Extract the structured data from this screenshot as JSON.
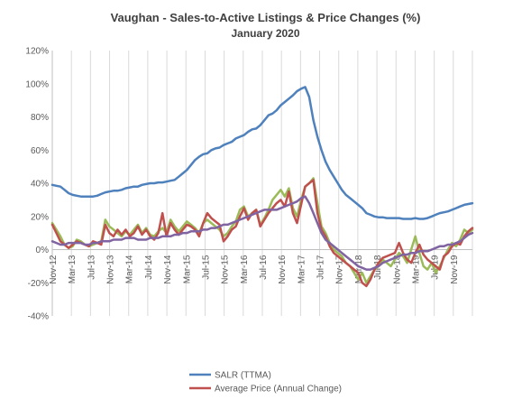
{
  "chart_data": {
    "type": "line",
    "title": "Vaughan - Sales-to-Active Listings & Price Changes (%)",
    "subtitle": "January 2020",
    "xlabel": "",
    "ylabel": "",
    "ylim": [
      -40,
      120
    ],
    "yticks": [
      "120%",
      "100%",
      "80%",
      "60%",
      "40%",
      "20%",
      "0%",
      "-20%",
      "-40%"
    ],
    "ytick_values": [
      120,
      100,
      80,
      60,
      40,
      20,
      0,
      -20,
      -40
    ],
    "x_tick_labels": [
      "Nov-12",
      "Mar-13",
      "Jul-13",
      "Nov-13",
      "Mar-14",
      "Jul-14",
      "Nov-14",
      "Mar-15",
      "Jul-15",
      "Nov-15",
      "Mar-16",
      "Jul-16",
      "Nov-16",
      "Mar-17",
      "Jul-17",
      "Nov-17",
      "Mar-18",
      "Jul-18",
      "Nov-18",
      "Mar-19",
      "Jul-19",
      "Nov-19"
    ],
    "grid": "vertical",
    "legend_position": "bottom",
    "series": [
      {
        "name": "SALR (TTMA)",
        "color": "#4f81bd",
        "values": [
          39,
          38.5,
          38,
          36,
          34,
          33,
          32.5,
          32,
          32,
          32,
          32,
          32.5,
          33.5,
          34.5,
          35,
          35.5,
          35.5,
          36,
          37,
          37.5,
          38,
          38,
          39,
          39.5,
          40,
          40,
          40.5,
          40.5,
          41,
          41.5,
          42,
          44,
          46,
          48,
          51,
          54,
          56,
          57.5,
          58,
          60,
          61,
          61.5,
          63,
          64,
          65,
          67,
          68,
          69,
          71,
          72.5,
          73,
          75,
          78,
          81,
          82,
          84,
          87,
          89,
          91,
          93,
          95.5,
          97,
          98,
          92,
          78,
          68,
          60,
          53,
          48,
          44,
          40,
          36,
          33,
          31,
          29,
          27,
          25,
          22,
          21,
          20,
          19.5,
          19.5,
          19,
          19,
          19,
          19,
          18.5,
          18.5,
          18.5,
          19,
          18.5,
          18.5,
          19,
          20,
          21,
          22,
          22.5,
          23,
          24,
          25,
          26,
          27,
          27.5,
          28
        ]
      },
      {
        "name": "Average Price (Annual Change)",
        "color": "#c0504d",
        "values": [
          15,
          10,
          5,
          3,
          1,
          3,
          5,
          4,
          3,
          2,
          5,
          4,
          3,
          15,
          10,
          8,
          12,
          9,
          12,
          8,
          10,
          14,
          9,
          12,
          8,
          6,
          10,
          22,
          8,
          16,
          12,
          9,
          12,
          15,
          14,
          12,
          8,
          16,
          22,
          19,
          17,
          15,
          5,
          8,
          12,
          14,
          20,
          25,
          18,
          22,
          24,
          14,
          18,
          22,
          25,
          28,
          30,
          26,
          35,
          22,
          16,
          27,
          38,
          40,
          42,
          22,
          12,
          8,
          2,
          -2,
          -4,
          -6,
          -8,
          -10,
          -12,
          -14,
          -20,
          -22,
          -18,
          -12,
          -8,
          -5,
          -4,
          -3,
          -2,
          4,
          -2,
          -6,
          -8,
          -2,
          3,
          -3,
          -6,
          -8,
          -10,
          -12,
          -4,
          -2,
          2,
          4,
          3,
          8,
          11,
          13
        ]
      },
      {
        "name": "Average Price (Annual Change)",
        "color": "#9bbb59",
        "values": [
          16,
          12,
          8,
          3,
          1,
          2,
          6,
          5,
          3,
          2,
          3,
          4,
          5,
          18,
          14,
          12,
          10,
          8,
          11,
          9,
          12,
          15,
          10,
          13,
          9,
          8,
          11,
          13,
          10,
          18,
          14,
          11,
          14,
          17,
          15,
          13,
          10,
          16,
          18,
          16,
          14,
          12,
          8,
          10,
          14,
          17,
          24,
          26,
          20,
          22,
          24,
          15,
          19,
          24,
          30,
          33,
          36,
          32,
          37,
          25,
          20,
          30,
          38,
          40,
          43,
          28,
          14,
          10,
          4,
          0,
          -2,
          -4,
          -8,
          -10,
          -14,
          -18,
          -14,
          -20,
          -16,
          -12,
          -10,
          -6,
          -8,
          -10,
          -6,
          -2,
          -4,
          -8,
          0,
          8,
          -2,
          -10,
          -12,
          -8,
          -14,
          -10,
          -5,
          0,
          4,
          2,
          6,
          12,
          10,
          12
        ]
      },
      {
        "name": "",
        "color": "#8064a2",
        "values": [
          5,
          4,
          3,
          3,
          4,
          4,
          4,
          4,
          3,
          3,
          4,
          4,
          5,
          5,
          5,
          6,
          6,
          6,
          7,
          7,
          7,
          6,
          6,
          6,
          7,
          7,
          7,
          8,
          8,
          8,
          9,
          9,
          10,
          10,
          11,
          11,
          11,
          12,
          12,
          13,
          13,
          14,
          15,
          15,
          16,
          17,
          18,
          19,
          20,
          21,
          22,
          23,
          24,
          24,
          24,
          24,
          25,
          26,
          27,
          28,
          29,
          31,
          32,
          28,
          22,
          16,
          10,
          6,
          4,
          2,
          0,
          -2,
          -4,
          -6,
          -8,
          -10,
          -11,
          -12,
          -12,
          -11,
          -10,
          -8,
          -7,
          -6,
          -5,
          -4,
          -3,
          -3,
          -2,
          -2,
          -1,
          -1,
          -1,
          0,
          1,
          2,
          2,
          3,
          3,
          4,
          5,
          7,
          9,
          10
        ]
      }
    ]
  }
}
